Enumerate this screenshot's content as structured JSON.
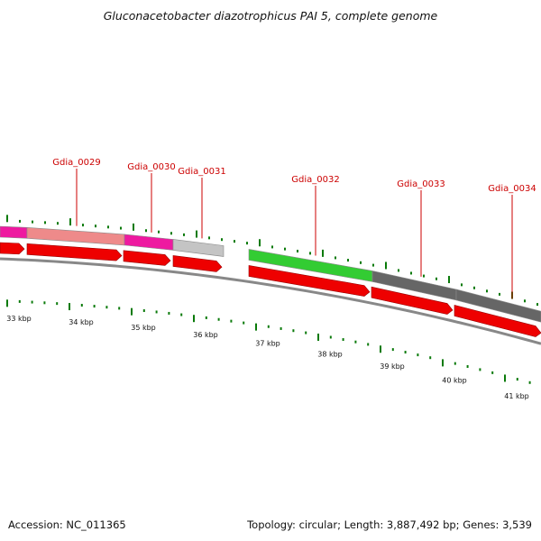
{
  "title": "Gluconacetobacter diazotrophicus PAI 5, complete genome",
  "footer": {
    "accession": "Accession: NC_011365",
    "summary": "Topology: circular; Length: 3,887,492 bp; Genes: 3,539"
  },
  "colors": {
    "label": "#cc0000",
    "tick": "#0a7a0a",
    "arrow": "#ee0000",
    "backbone": "#888888"
  },
  "gene_labels": [
    "Gdia_0029",
    "Gdia_0030",
    "Gdia_0031",
    "Gdia_0032",
    "Gdia_0033",
    "Gdia_0034"
  ],
  "kbp_labels": [
    "33 kbp",
    "34 kbp",
    "35 kbp",
    "36 kbp",
    "37 kbp",
    "38 kbp",
    "39 kbp",
    "40 kbp",
    "41 kbp"
  ],
  "cog_band_colors": [
    "#ee1aa0",
    "#ee8a8a",
    "#ee1aa0",
    "#c4c4c4",
    "#33cc33",
    "#666666",
    "#666666"
  ]
}
